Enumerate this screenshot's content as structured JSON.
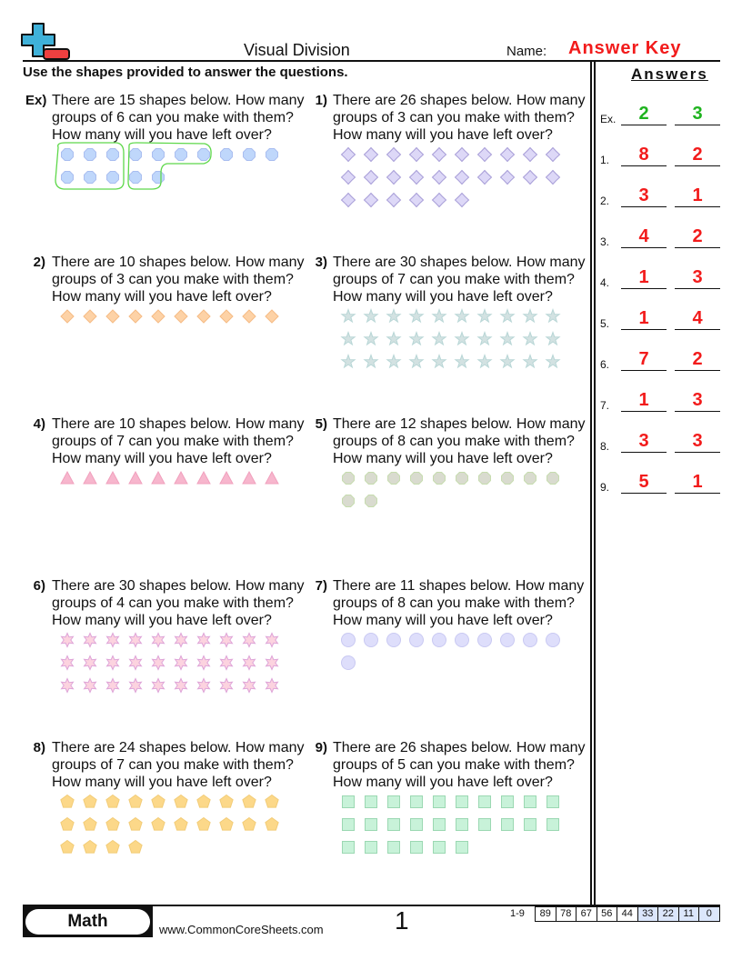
{
  "header": {
    "title": "Visual Division",
    "name_label": "Name:",
    "answer_key": "Answer Key",
    "instructions": "Use the shapes provided to answer the questions."
  },
  "problems": [
    {
      "label": "Ex)",
      "lines": [
        "There are 15 shapes below. How many",
        "groups of 6 can you make with them?",
        "How many will you have left over?"
      ],
      "shape": "octagon",
      "count": 15,
      "fill": "#bfd7fb",
      "stroke": "#a8bdf0"
    },
    {
      "label": "1)",
      "lines": [
        "There are 26 shapes below. How many",
        "groups of 3 can you make with them?",
        "How many will you have left over?"
      ],
      "shape": "clover",
      "count": 26,
      "fill": "#ddd8f7",
      "stroke": "#a89ed8"
    },
    {
      "label": "2)",
      "lines": [
        "There are 10 shapes below. How many",
        "groups of 3 can you make with them?",
        "How many will you have left over?"
      ],
      "shape": "diamond",
      "count": 10,
      "fill": "#fdd2a6",
      "stroke": "#f5bb85"
    },
    {
      "label": "3)",
      "lines": [
        "There are 30 shapes below. How many",
        "groups of 7 can you make with them?",
        "How many will you have left over?"
      ],
      "shape": "star5",
      "count": 30,
      "fill": "#d3e2e2",
      "stroke": "#b8d6d6"
    },
    {
      "label": "4)",
      "lines": [
        "There are 10 shapes below. How many",
        "groups of 7 can you make with them?",
        "How many will you have left over?"
      ],
      "shape": "triangle",
      "count": 10,
      "fill": "#f7b6cd",
      "stroke": "#f0a0bd"
    },
    {
      "label": "5)",
      "lines": [
        "There are 12 shapes below. How many",
        "groups of 8 can you make with them?",
        "How many will you have left over?"
      ],
      "shape": "octagon",
      "count": 12,
      "fill": "#d9dbcf",
      "stroke": "#c6dcae"
    },
    {
      "label": "6)",
      "lines": [
        "There are 30 shapes below. How many",
        "groups of 4 can you make with them?",
        "How many will you have left over?"
      ],
      "shape": "star6",
      "count": 30,
      "fill": "#fcd3df",
      "stroke": "#dea4d8"
    },
    {
      "label": "7)",
      "lines": [
        "There are 11 shapes below. How many",
        "groups of 8 can you make with them?",
        "How many will you have left over?"
      ],
      "shape": "circle",
      "count": 11,
      "fill": "#dedefb",
      "stroke": "#c9c9f2"
    },
    {
      "label": "8)",
      "lines": [
        "There are 24 shapes below. How many",
        "groups of 7 can you make with them?",
        "How many will you have left over?"
      ],
      "shape": "pentagon",
      "count": 24,
      "fill": "#fcd889",
      "stroke": "#f2cc78"
    },
    {
      "label": "9)",
      "lines": [
        "There are 26 shapes below. How many",
        "groups of 5 can you make with them?",
        "How many will you have left over?"
      ],
      "shape": "square",
      "count": 26,
      "fill": "#c8f2d9",
      "stroke": "#9bd8b2"
    }
  ],
  "example_group_color": "#5ed84a",
  "answers": {
    "title": "Answers",
    "rows": [
      {
        "label": "Ex.",
        "groups": "2",
        "left_over": "3"
      },
      {
        "label": "1.",
        "groups": "8",
        "left_over": "2"
      },
      {
        "label": "2.",
        "groups": "3",
        "left_over": "1"
      },
      {
        "label": "3.",
        "groups": "4",
        "left_over": "2"
      },
      {
        "label": "4.",
        "groups": "1",
        "left_over": "3"
      },
      {
        "label": "5.",
        "groups": "1",
        "left_over": "4"
      },
      {
        "label": "6.",
        "groups": "7",
        "left_over": "2"
      },
      {
        "label": "7.",
        "groups": "1",
        "left_over": "3"
      },
      {
        "label": "8.",
        "groups": "3",
        "left_over": "3"
      },
      {
        "label": "9.",
        "groups": "5",
        "left_over": "1"
      }
    ],
    "example_color": "#1fb31f",
    "answer_color": "#f21b1b"
  },
  "footer": {
    "subject": "Math",
    "site": "www.CommonCoreSheets.com",
    "page": "1",
    "score_label": "1-9",
    "scores": [
      "89",
      "78",
      "67",
      "56",
      "44",
      "33",
      "22",
      "11",
      "0"
    ]
  }
}
